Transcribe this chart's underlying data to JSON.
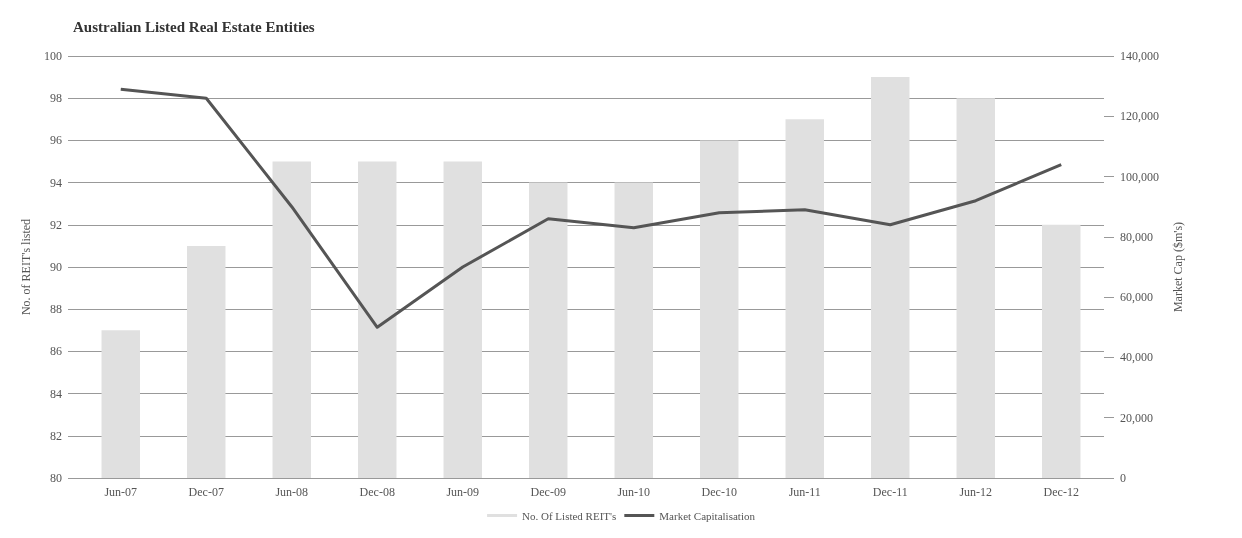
{
  "chart_data": {
    "type": "bar",
    "title": "Australian Listed Real Estate Entities",
    "ylabel": "No. of REIT's listed",
    "y2label": "Market Cap ($m's)",
    "categories": [
      "Jun-07",
      "Dec-07",
      "Jun-08",
      "Dec-08",
      "Jun-09",
      "Dec-09",
      "Jun-10",
      "Dec-10",
      "Jun-11",
      "Dec-11",
      "Jun-12",
      "Dec-12"
    ],
    "series": [
      {
        "name": "No. Of Listed REIT's",
        "color": "#e0e0e0",
        "values": [
          87,
          91,
          95,
          95,
          95,
          94,
          94,
          96,
          97,
          99,
          98,
          92
        ]
      },
      {
        "name": "Market Capitalisation",
        "type": "line",
        "axis": "y2",
        "color": "#555555",
        "values": [
          129000,
          126000,
          90000,
          50000,
          70000,
          86000,
          83000,
          88000,
          89000,
          84000,
          92000,
          104000
        ]
      }
    ],
    "ylim": [
      80,
      100
    ],
    "yticks": [
      80,
      82,
      84,
      86,
      88,
      90,
      92,
      94,
      96,
      98,
      100
    ],
    "y2lim": [
      0,
      140000
    ],
    "y2ticks": [
      0,
      {
        "value": 20000,
        "label": "20,000"
      },
      {
        "value": 40000,
        "label": "40,000"
      },
      {
        "value": 60000,
        "label": "60,000"
      },
      {
        "value": 80000,
        "label": "80,000"
      },
      {
        "value": 100000,
        "label": "100,000"
      },
      {
        "value": 120000,
        "label": "120,000"
      },
      {
        "value": 140000,
        "label": "140,000"
      }
    ],
    "grid": "y",
    "legend": "bottom",
    "marker": "none",
    "line_style": "solid"
  }
}
